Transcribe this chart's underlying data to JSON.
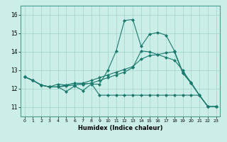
{
  "xlabel": "Humidex (Indice chaleur)",
  "ylabel": "",
  "bg_color": "#cceee8",
  "line_color": "#1a7a6e",
  "xlim": [
    -0.5,
    23.5
  ],
  "ylim": [
    10.5,
    16.5
  ],
  "xticks": [
    0,
    1,
    2,
    3,
    4,
    5,
    6,
    7,
    8,
    9,
    10,
    11,
    12,
    13,
    14,
    15,
    16,
    17,
    18,
    19,
    20,
    21,
    22,
    23
  ],
  "yticks": [
    11,
    12,
    13,
    14,
    15,
    16
  ],
  "series": [
    [
      12.65,
      12.45,
      12.2,
      12.1,
      12.1,
      11.85,
      12.15,
      11.9,
      12.25,
      12.25,
      13.0,
      14.05,
      15.7,
      15.75,
      14.3,
      14.95,
      15.05,
      14.9,
      14.05,
      12.9,
      12.35,
      11.65,
      11.05,
      11.05
    ],
    [
      12.65,
      12.45,
      12.2,
      12.1,
      12.1,
      12.2,
      12.3,
      12.3,
      12.45,
      12.6,
      12.75,
      12.9,
      13.05,
      13.2,
      13.6,
      13.8,
      13.85,
      13.95,
      14.0,
      12.85,
      12.3,
      11.65,
      11.05,
      11.05
    ],
    [
      12.65,
      12.45,
      12.2,
      12.1,
      12.1,
      12.15,
      12.2,
      12.25,
      12.3,
      11.65,
      11.65,
      11.65,
      11.65,
      11.65,
      11.65,
      11.65,
      11.65,
      11.65,
      11.65,
      11.65,
      11.65,
      11.65,
      11.05,
      11.05
    ],
    [
      12.65,
      12.45,
      12.2,
      12.1,
      12.25,
      12.2,
      12.3,
      12.25,
      12.3,
      12.45,
      12.6,
      12.75,
      12.9,
      13.15,
      14.05,
      14.0,
      13.85,
      13.7,
      13.55,
      13.0,
      12.3,
      11.65,
      11.05,
      11.05
    ]
  ]
}
